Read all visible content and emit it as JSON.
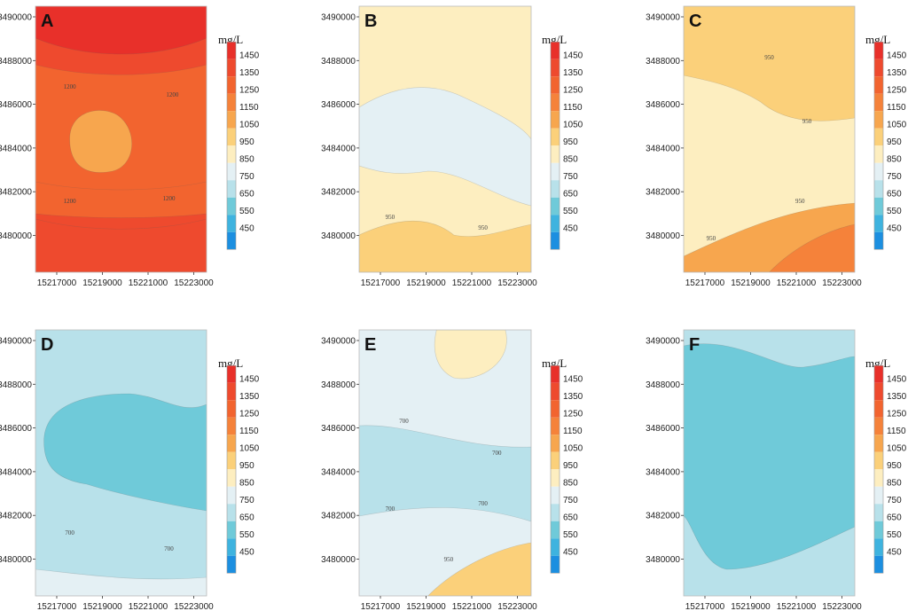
{
  "chart_data": {
    "type": "heatmap",
    "unit": "mg/L",
    "colorbar": {
      "levels": [
        1450,
        1350,
        1250,
        1150,
        1050,
        950,
        850,
        750,
        650,
        550,
        450
      ],
      "colors": [
        "#e8302a",
        "#ee4a2e",
        "#f2642f",
        "#f5823a",
        "#f7a64e",
        "#fbd07a",
        "#fdeec0",
        "#e4f0f4",
        "#b8e1ea",
        "#6fcad9",
        "#3eb3df",
        "#1c8fe0"
      ]
    },
    "y_ticks": [
      "3490000",
      "3488000",
      "3486000",
      "3484000",
      "3482000",
      "3480000"
    ],
    "x_ticks": [
      "15217000",
      "15219000",
      "15221000",
      "15223000"
    ],
    "panels": [
      {
        "letter": "A",
        "contour_labels": [
          {
            "text": "1200"
          },
          {
            "text": "1200"
          },
          {
            "text": "1200"
          },
          {
            "text": "1200"
          }
        ],
        "zones": [
          {
            "value": 1450,
            "desc": "top edge"
          },
          {
            "value": 1350,
            "desc": "upper band"
          },
          {
            "value": 1250,
            "desc": "band near 3486500"
          },
          {
            "value": 1050,
            "desc": "center plume"
          },
          {
            "value": 1250,
            "desc": "band near 3482000"
          },
          {
            "value": 1350,
            "desc": "lower band"
          }
        ]
      },
      {
        "letter": "B",
        "contour_labels": [
          {
            "text": "950"
          },
          {
            "text": "950"
          }
        ],
        "zones": [
          {
            "value": 850,
            "desc": "background"
          },
          {
            "value": 750,
            "desc": "central low"
          },
          {
            "value": 950,
            "desc": "south high"
          }
        ]
      },
      {
        "letter": "C",
        "contour_labels": [
          {
            "text": "950"
          },
          {
            "text": "950"
          },
          {
            "text": "950"
          },
          {
            "text": "950"
          }
        ],
        "zones": [
          {
            "value": 850,
            "desc": "background"
          },
          {
            "value": 950,
            "desc": "north high"
          },
          {
            "value": 1050,
            "desc": "south high"
          },
          {
            "value": 1150,
            "desc": "southeast peak"
          }
        ]
      },
      {
        "letter": "D",
        "contour_labels": [
          {
            "text": "700"
          },
          {
            "text": "700"
          }
        ],
        "zones": [
          {
            "value": 650,
            "desc": "background"
          },
          {
            "value": 550,
            "desc": "central low"
          },
          {
            "value": 750,
            "desc": "south edge"
          }
        ]
      },
      {
        "letter": "E",
        "contour_labels": [
          {
            "text": "700"
          },
          {
            "text": "700"
          },
          {
            "text": "700"
          },
          {
            "text": "700"
          },
          {
            "text": "950"
          }
        ],
        "zones": [
          {
            "value": 750,
            "desc": "background"
          },
          {
            "value": 850,
            "desc": "north"
          },
          {
            "value": 650,
            "desc": "central band"
          },
          {
            "value": 950,
            "desc": "southeast"
          }
        ]
      },
      {
        "letter": "F",
        "contour_labels": [],
        "zones": [
          {
            "value": 650,
            "desc": "edge"
          },
          {
            "value": 550,
            "desc": "interior"
          }
        ]
      }
    ]
  }
}
